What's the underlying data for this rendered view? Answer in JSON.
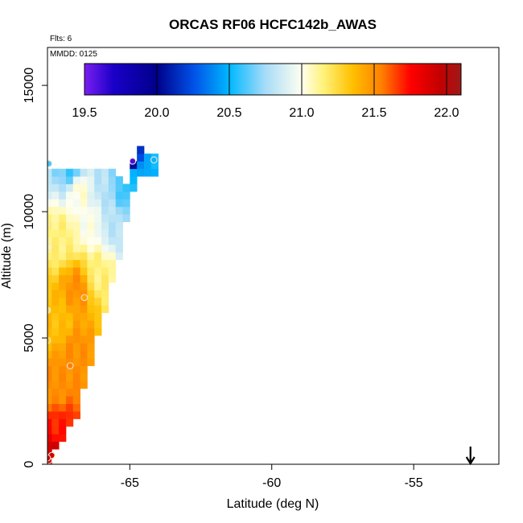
{
  "chart_data": {
    "type": "heatmap",
    "title": "ORCAS RF06 HCFC142b_AWAS",
    "flights_label": "Flts: 6",
    "date_label": "MMDD: 0125",
    "xlabel": "Latitude (deg N)",
    "ylabel": "Altitude (m)",
    "xlim": [
      -67.9,
      -52.0
    ],
    "ylim": [
      0,
      16500
    ],
    "x_ticks": [
      -65,
      -60,
      -55
    ],
    "x_tick_labels": [
      "-65",
      "-60",
      "-55"
    ],
    "y_ticks": [
      0,
      5000,
      10000,
      15000
    ],
    "y_tick_labels": [
      "0",
      "5000",
      "10000",
      "15000"
    ],
    "colorbar": {
      "range": [
        19.5,
        22.1
      ],
      "ticks": [
        19.5,
        20.0,
        20.5,
        21.0,
        21.5,
        22.0
      ],
      "tick_labels": [
        "19.5",
        "20.0",
        "20.5",
        "21.0",
        "21.5",
        "22.0"
      ],
      "colors": [
        {
          "v": 19.5,
          "c": "#7a1ef0"
        },
        {
          "v": 19.7,
          "c": "#1a00c8"
        },
        {
          "v": 20.0,
          "c": "#00008a"
        },
        {
          "v": 20.25,
          "c": "#0050e6"
        },
        {
          "v": 20.5,
          "c": "#00b8ff"
        },
        {
          "v": 20.75,
          "c": "#a8dcf8"
        },
        {
          "v": 21.0,
          "c": "#fffff0"
        },
        {
          "v": 21.15,
          "c": "#fff27a"
        },
        {
          "v": 21.35,
          "c": "#ffc000"
        },
        {
          "v": 21.55,
          "c": "#ff8000"
        },
        {
          "v": 21.75,
          "c": "#ff0000"
        },
        {
          "v": 21.95,
          "c": "#c40000"
        },
        {
          "v": 22.1,
          "c": "#a01818"
        }
      ]
    },
    "grid_cell": {
      "dx": 0.25,
      "dy": 300
    },
    "column_top_altitudes": [
      {
        "lat": -67.875,
        "alt": 11700
      },
      {
        "lat": -67.625,
        "alt": 11700
      },
      {
        "lat": -67.375,
        "alt": 11700
      },
      {
        "lat": -67.125,
        "alt": 11700
      },
      {
        "lat": -66.875,
        "alt": 11700
      },
      {
        "lat": -66.625,
        "alt": 11700
      },
      {
        "lat": -66.375,
        "alt": 11700
      },
      {
        "lat": -66.125,
        "alt": 11700
      },
      {
        "lat": -65.875,
        "alt": 11700
      },
      {
        "lat": -65.625,
        "alt": 11700
      },
      {
        "lat": -65.375,
        "alt": 11400
      },
      {
        "lat": -65.125,
        "alt": 11100
      },
      {
        "lat": -64.875,
        "alt": 11800
      },
      {
        "lat": -64.625,
        "alt": 12400
      },
      {
        "lat": -64.375,
        "alt": 12300
      },
      {
        "lat": -64.125,
        "alt": 12300
      }
    ],
    "triangle_edge": {
      "lower": [
        [
          -67.9,
          0
        ],
        [
          -66.9,
          1800
        ],
        [
          -66.0,
          5500
        ],
        [
          -65.3,
          8400
        ],
        [
          -65.0,
          10600
        ],
        [
          -64.6,
          11300
        ]
      ],
      "top_band_alt": [
        11400,
        11700
      ]
    },
    "field_description_points": [
      {
        "lat": -67.8,
        "alt": 300,
        "v": 21.95
      },
      {
        "lat": -67.5,
        "alt": 1500,
        "v": 21.7
      },
      {
        "lat": -67.6,
        "alt": 3000,
        "v": 21.5
      },
      {
        "lat": -67.0,
        "alt": 4500,
        "v": 21.5
      },
      {
        "lat": -67.5,
        "alt": 5500,
        "v": 21.35
      },
      {
        "lat": -66.8,
        "alt": 7000,
        "v": 21.5
      },
      {
        "lat": -66.2,
        "alt": 7500,
        "v": 21.15
      },
      {
        "lat": -67.4,
        "alt": 9000,
        "v": 21.15
      },
      {
        "lat": -66.4,
        "alt": 9500,
        "v": 21.0
      },
      {
        "lat": -65.6,
        "alt": 9700,
        "v": 20.8
      },
      {
        "lat": -66.8,
        "alt": 11000,
        "v": 21.05
      },
      {
        "lat": -65.9,
        "alt": 11200,
        "v": 20.8
      },
      {
        "lat": -65.2,
        "alt": 10900,
        "v": 20.6
      },
      {
        "lat": -64.8,
        "alt": 11600,
        "v": 20.5
      },
      {
        "lat": -67.0,
        "alt": 11550,
        "v": 20.6
      },
      {
        "lat": -64.95,
        "alt": 12100,
        "v": 19.6
      },
      {
        "lat": -64.3,
        "alt": 12100,
        "v": 20.5
      }
    ],
    "sample_points": [
      {
        "lat": -67.85,
        "alt": 150,
        "v": 21.95
      },
      {
        "lat": -67.75,
        "alt": 350,
        "v": 21.9
      },
      {
        "lat": -67.9,
        "alt": 250,
        "v": 21.9
      },
      {
        "lat": -67.1,
        "alt": 3900,
        "v": 21.55
      },
      {
        "lat": -66.6,
        "alt": 6600,
        "v": 21.45
      },
      {
        "lat": -67.9,
        "alt": 4900,
        "v": 21.3
      },
      {
        "lat": -67.9,
        "alt": 6100,
        "v": 21.2
      },
      {
        "lat": -67.85,
        "alt": 8600,
        "v": 21.1
      },
      {
        "lat": -67.95,
        "alt": 9500,
        "v": 21.1
      },
      {
        "lat": -67.85,
        "alt": 11900,
        "v": 20.6
      },
      {
        "lat": -64.9,
        "alt": 12000,
        "v": 19.6
      },
      {
        "lat": -64.15,
        "alt": 12050,
        "v": 20.5
      }
    ],
    "arrow_marker": {
      "lat": -53.0,
      "direction": "down"
    },
    "grid": false
  }
}
